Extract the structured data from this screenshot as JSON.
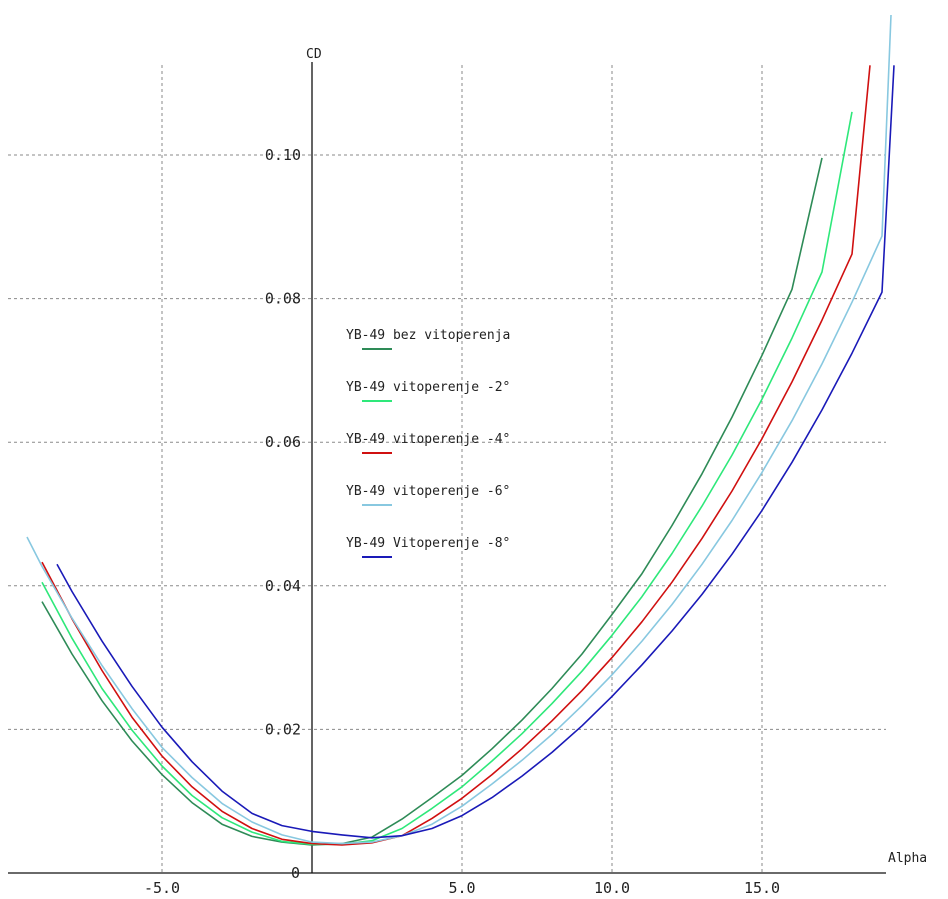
{
  "chart_data": {
    "type": "line",
    "xlabel": "Alpha",
    "ylabel": "CD",
    "xlim": [
      -9.5,
      19.5
    ],
    "ylim": [
      0,
      0.12
    ],
    "grid": true,
    "x_ticks": [
      -5,
      0,
      5,
      10,
      15
    ],
    "x_tick_labels": [
      "-5.0",
      "0",
      "5.0",
      "10.0",
      "15.0"
    ],
    "y_ticks": [
      0.02,
      0.04,
      0.06,
      0.08,
      0.1
    ],
    "y_tick_labels": [
      "0.02",
      "0.04",
      "0.06",
      "0.08",
      "0.10"
    ],
    "origin_label": "0",
    "legend_position": "center",
    "series": [
      {
        "name": "YB-49 bez vitoperenja",
        "color": "#2e8b57",
        "x": [
          -9.0,
          -8.0,
          -7.0,
          -6.0,
          -5.0,
          -4.0,
          -3.0,
          -2.0,
          -1.0,
          0.0,
          1.0,
          2.0,
          3.0,
          4.0,
          5.0,
          6.0,
          7.0,
          8.0,
          9.0,
          10.0,
          11.0,
          12.0,
          13.0,
          14.0,
          15.0,
          16.0,
          17.0
        ],
        "y": [
          0.0378,
          0.0305,
          0.024,
          0.0184,
          0.0137,
          0.0098,
          0.0068,
          0.0051,
          0.0043,
          0.0039,
          0.0041,
          0.005,
          0.0075,
          0.0105,
          0.0136,
          0.0173,
          0.0213,
          0.0257,
          0.0305,
          0.036,
          0.0417,
          0.0484,
          0.0556,
          0.0635,
          0.0721,
          0.0813,
          0.0996
        ]
      },
      {
        "name": "YB-49 vitoperenje -2°",
        "color": "#2ee87a",
        "x": [
          -9.0,
          -8.0,
          -7.0,
          -6.0,
          -5.0,
          -4.0,
          -3.0,
          -2.0,
          -1.0,
          0.0,
          1.0,
          2.0,
          3.0,
          4.0,
          5.0,
          6.0,
          7.0,
          8.0,
          9.0,
          10.0,
          11.0,
          12.0,
          13.0,
          14.0,
          15.0,
          16.0,
          17.0,
          18.0
        ],
        "y": [
          0.0405,
          0.0327,
          0.0257,
          0.0199,
          0.0149,
          0.0108,
          0.0077,
          0.0057,
          0.0044,
          0.004,
          0.004,
          0.0045,
          0.0062,
          0.009,
          0.012,
          0.0156,
          0.0194,
          0.0236,
          0.0281,
          0.0331,
          0.0385,
          0.0445,
          0.0511,
          0.0582,
          0.066,
          0.0745,
          0.0837,
          0.106
        ]
      },
      {
        "name": "YB-49 vitoperenje -4°",
        "color": "#d01010",
        "x": [
          -9.0,
          -8.0,
          -7.0,
          -6.0,
          -5.0,
          -4.0,
          -3.0,
          -2.0,
          -1.0,
          0.0,
          1.0,
          2.0,
          3.0,
          4.0,
          5.0,
          6.0,
          7.0,
          8.0,
          9.0,
          10.0,
          11.0,
          12.0,
          13.0,
          14.0,
          15.0,
          16.0,
          17.0,
          18.0,
          18.6
        ],
        "y": [
          0.0433,
          0.0354,
          0.0282,
          0.0217,
          0.0163,
          0.012,
          0.0086,
          0.0062,
          0.0047,
          0.0041,
          0.0039,
          0.0042,
          0.0052,
          0.0076,
          0.0104,
          0.0137,
          0.0173,
          0.0212,
          0.0254,
          0.03,
          0.035,
          0.0405,
          0.0466,
          0.0532,
          0.0605,
          0.0684,
          0.077,
          0.0862,
          0.1125
        ]
      },
      {
        "name": "YB-49 vitoperenje -6°",
        "color": "#88c8e0",
        "x": [
          -9.5,
          -9.0,
          -8.0,
          -7.0,
          -6.0,
          -5.0,
          -4.0,
          -3.0,
          -2.0,
          -1.0,
          0.0,
          1.0,
          2.0,
          3.0,
          4.0,
          5.0,
          6.0,
          7.0,
          8.0,
          9.0,
          10.0,
          11.0,
          12.0,
          13.0,
          14.0,
          15.0,
          16.0,
          17.0,
          18.0,
          19.0,
          19.3
        ],
        "y": [
          0.0468,
          0.0427,
          0.0355,
          0.0289,
          0.0229,
          0.0175,
          0.0133,
          0.0097,
          0.0071,
          0.0053,
          0.0043,
          0.0041,
          0.0043,
          0.0052,
          0.0068,
          0.0093,
          0.0124,
          0.0157,
          0.0193,
          0.0233,
          0.0276,
          0.0323,
          0.0374,
          0.043,
          0.0491,
          0.0558,
          0.063,
          0.0709,
          0.0795,
          0.0887,
          0.1195
        ]
      },
      {
        "name": "YB-49 Vitoperenje -8°",
        "color": "#1a1ab8",
        "x": [
          -8.5,
          -8.0,
          -7.0,
          -6.0,
          -5.0,
          -4.0,
          -3.0,
          -2.0,
          -1.0,
          0.0,
          1.0,
          2.0,
          3.0,
          4.0,
          5.0,
          6.0,
          7.0,
          8.0,
          9.0,
          10.0,
          11.0,
          12.0,
          13.0,
          14.0,
          15.0,
          16.0,
          17.0,
          18.0,
          19.0,
          19.4
        ],
        "y": [
          0.043,
          0.0392,
          0.0323,
          0.026,
          0.0203,
          0.0155,
          0.0114,
          0.0083,
          0.0066,
          0.0058,
          0.0053,
          0.0049,
          0.0052,
          0.0062,
          0.008,
          0.0105,
          0.0135,
          0.0168,
          0.0205,
          0.0246,
          0.029,
          0.0337,
          0.0388,
          0.0444,
          0.0505,
          0.0572,
          0.0645,
          0.0724,
          0.0809,
          0.1125
        ]
      }
    ]
  }
}
